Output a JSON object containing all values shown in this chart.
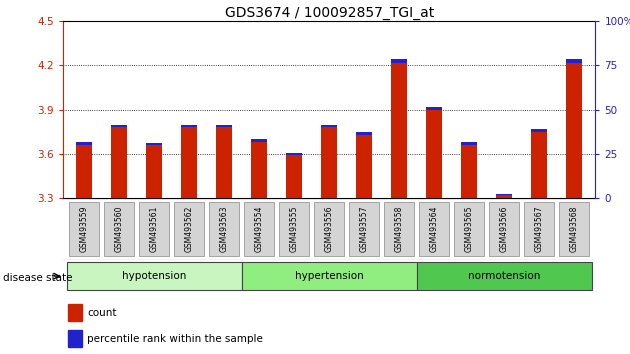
{
  "title": "GDS3674 / 100092857_TGI_at",
  "samples": [
    "GSM493559",
    "GSM493560",
    "GSM493561",
    "GSM493562",
    "GSM493563",
    "GSM493554",
    "GSM493555",
    "GSM493556",
    "GSM493557",
    "GSM493558",
    "GSM493564",
    "GSM493565",
    "GSM493566",
    "GSM493567",
    "GSM493568"
  ],
  "red_values": [
    3.66,
    3.78,
    3.66,
    3.78,
    3.78,
    3.68,
    3.59,
    3.78,
    3.73,
    4.22,
    3.9,
    3.66,
    3.32,
    3.75,
    4.22
  ],
  "blue_values": [
    0.02,
    0.018,
    0.015,
    0.018,
    0.018,
    0.022,
    0.018,
    0.018,
    0.02,
    0.025,
    0.018,
    0.018,
    0.008,
    0.018,
    0.025
  ],
  "y_min": 3.3,
  "y_max": 4.5,
  "y_ticks_left": [
    3.3,
    3.6,
    3.9,
    4.2,
    4.5
  ],
  "y_ticks_right": [
    0,
    25,
    50,
    75,
    100
  ],
  "groups": [
    {
      "label": "hypotension",
      "start": 0,
      "end": 5
    },
    {
      "label": "hypertension",
      "start": 5,
      "end": 10
    },
    {
      "label": "normotension",
      "start": 10,
      "end": 15
    }
  ],
  "group_colors": [
    "#c8f5c0",
    "#90ee80",
    "#50c850"
  ],
  "bar_width": 0.45,
  "red_color": "#cc2200",
  "blue_color": "#2222cc",
  "axis_color_left": "#cc2200",
  "axis_color_right": "#2222cc",
  "tick_label_bg": "#d4d4d4",
  "disease_state_label": "disease state",
  "legend_red": "count",
  "legend_blue": "percentile rank within the sample"
}
